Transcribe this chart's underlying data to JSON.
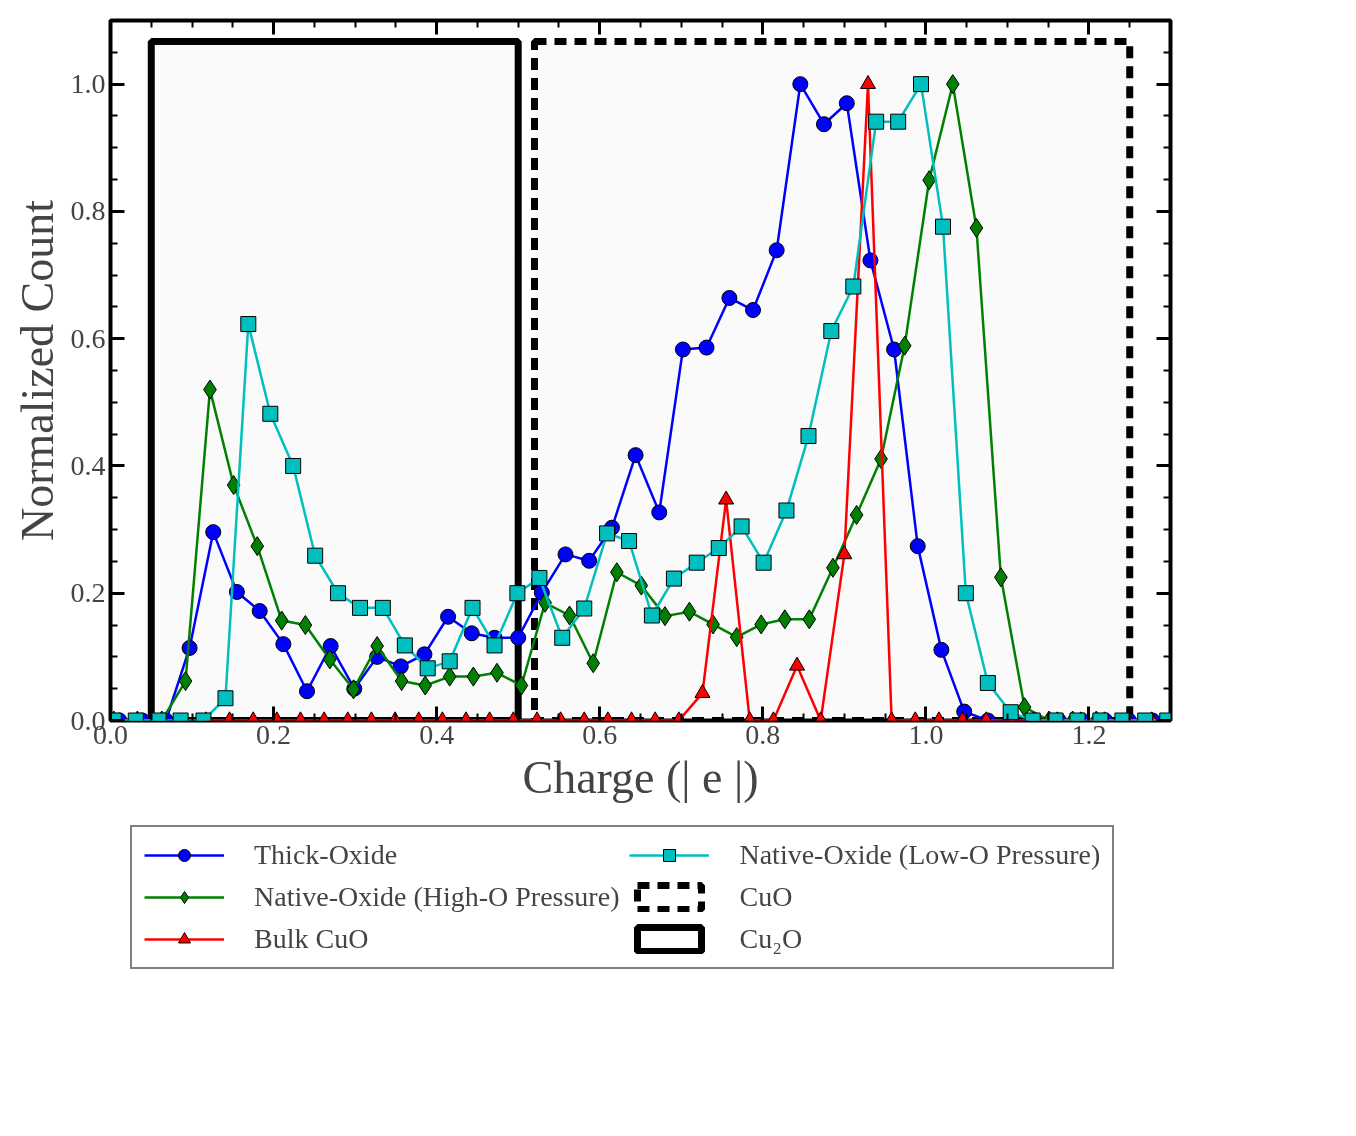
{
  "chart_data": {
    "type": "line",
    "xlabel": "Charge (| e |)",
    "ylabel": "Normalized Count",
    "xlim": [
      0,
      1.3
    ],
    "ylim": [
      0,
      1.1
    ],
    "xticks": [
      {
        "value": 0,
        "label": "0.0"
      },
      {
        "value": 0.05,
        "label": null
      },
      {
        "value": 0.1,
        "label": null
      },
      {
        "value": 0.15,
        "label": null
      },
      {
        "value": 0.2,
        "label": "0.2"
      },
      {
        "value": 0.25,
        "label": null
      },
      {
        "value": 0.3,
        "label": null
      },
      {
        "value": 0.35,
        "label": null
      },
      {
        "value": 0.4,
        "label": "0.4"
      },
      {
        "value": 0.45,
        "label": null
      },
      {
        "value": 0.5,
        "label": null
      },
      {
        "value": 0.55,
        "label": null
      },
      {
        "value": 0.6,
        "label": "0.6"
      },
      {
        "value": 0.65,
        "label": null
      },
      {
        "value": 0.7,
        "label": null
      },
      {
        "value": 0.75,
        "label": null
      },
      {
        "value": 0.8,
        "label": "0.8"
      },
      {
        "value": 0.85,
        "label": null
      },
      {
        "value": 0.9,
        "label": null
      },
      {
        "value": 0.95,
        "label": null
      },
      {
        "value": 1.0,
        "label": "1.0"
      },
      {
        "value": 1.05,
        "label": null
      },
      {
        "value": 1.1,
        "label": null
      },
      {
        "value": 1.15,
        "label": null
      },
      {
        "value": 1.2,
        "label": "1.2"
      },
      {
        "value": 1.25,
        "label": null
      }
    ],
    "yticks": [
      {
        "value": 0,
        "label": "0.0"
      },
      {
        "value": 0.05,
        "label": null
      },
      {
        "value": 0.1,
        "label": null
      },
      {
        "value": 0.15,
        "label": null
      },
      {
        "value": 0.2,
        "label": "0.2"
      },
      {
        "value": 0.25,
        "label": null
      },
      {
        "value": 0.3,
        "label": null
      },
      {
        "value": 0.35,
        "label": null
      },
      {
        "value": 0.4,
        "label": "0.4"
      },
      {
        "value": 0.45,
        "label": null
      },
      {
        "value": 0.5,
        "label": null
      },
      {
        "value": 0.55,
        "label": null
      },
      {
        "value": 0.6,
        "label": "0.6"
      },
      {
        "value": 0.65,
        "label": null
      },
      {
        "value": 0.7,
        "label": null
      },
      {
        "value": 0.75,
        "label": null
      },
      {
        "value": 0.8,
        "label": "0.8"
      },
      {
        "value": 0.85,
        "label": null
      },
      {
        "value": 0.9,
        "label": null
      },
      {
        "value": 0.95,
        "label": null
      },
      {
        "value": 1.0,
        "label": "1.0"
      },
      {
        "value": 1.05,
        "label": null
      }
    ],
    "grid": false,
    "legend": "bottom",
    "line_style": "solid",
    "series": [
      {
        "name": "Thick-Oxide",
        "color": "#0000ff",
        "marker": "circle",
        "x": [
          0.011,
          0.039,
          0.068,
          0.097,
          0.126,
          0.155,
          0.183,
          0.212,
          0.241,
          0.27,
          0.299,
          0.327,
          0.356,
          0.385,
          0.414,
          0.443,
          0.471,
          0.5,
          0.529,
          0.558,
          0.587,
          0.615,
          0.644,
          0.673,
          0.702,
          0.731,
          0.759,
          0.788,
          0.817,
          0.846,
          0.875,
          0.903,
          0.932,
          0.961,
          0.99,
          1.019,
          1.047,
          1.076,
          1.105,
          1.134,
          1.163,
          1.191,
          1.22,
          1.249,
          1.278
        ],
        "values": [
          0,
          0,
          0,
          0.114,
          0.296,
          0.202,
          0.172,
          0.12,
          0.046,
          0.117,
          0.05,
          0.1,
          0.085,
          0.104,
          0.163,
          0.137,
          0.13,
          0.13,
          0.201,
          0.261,
          0.251,
          0.303,
          0.417,
          0.327,
          0.583,
          0.586,
          0.664,
          0.645,
          0.739,
          1.0,
          0.937,
          0.97,
          0.723,
          0.583,
          0.274,
          0.111,
          0.014,
          0.0,
          0,
          0,
          0,
          0,
          0,
          0,
          0
        ]
      },
      {
        "name": "Native-Oxide (High-O Pressure)",
        "color": "#008000",
        "marker": "diamond",
        "x": [
          0.004,
          0.033,
          0.063,
          0.092,
          0.122,
          0.151,
          0.18,
          0.21,
          0.239,
          0.269,
          0.298,
          0.327,
          0.357,
          0.386,
          0.416,
          0.445,
          0.474,
          0.504,
          0.533,
          0.563,
          0.592,
          0.621,
          0.651,
          0.68,
          0.71,
          0.739,
          0.768,
          0.798,
          0.827,
          0.857,
          0.886,
          0.915,
          0.945,
          0.974,
          1.004,
          1.033,
          1.062,
          1.092,
          1.121,
          1.151,
          1.18,
          1.209
        ],
        "values": [
          0,
          0,
          0,
          0.062,
          0.52,
          0.37,
          0.274,
          0.157,
          0.15,
          0.096,
          0.049,
          0.117,
          0.062,
          0.055,
          0.069,
          0.069,
          0.075,
          0.055,
          0.185,
          0.165,
          0.09,
          0.233,
          0.212,
          0.164,
          0.171,
          0.151,
          0.131,
          0.151,
          0.159,
          0.159,
          0.24,
          0.323,
          0.411,
          0.589,
          0.849,
          1.0,
          0.774,
          0.225,
          0.021,
          0,
          0,
          0
        ]
      },
      {
        "name": "Bulk CuO",
        "color": "#ff0000",
        "marker": "triangle",
        "x": [
          0.117,
          0.146,
          0.175,
          0.204,
          0.233,
          0.262,
          0.291,
          0.32,
          0.349,
          0.378,
          0.407,
          0.436,
          0.465,
          0.494,
          0.523,
          0.552,
          0.581,
          0.61,
          0.639,
          0.668,
          0.697,
          0.726,
          0.755,
          0.784,
          0.813,
          0.842,
          0.871,
          0.9,
          0.929,
          0.958,
          0.987,
          1.016,
          1.045,
          1.074,
          1.103,
          1.132,
          1.161,
          1.19,
          1.219,
          1.248,
          1.277
        ],
        "values": [
          0,
          0,
          0,
          0,
          0,
          0,
          0,
          0,
          0,
          0,
          0,
          0,
          0,
          0,
          0,
          0,
          0,
          0,
          0,
          0,
          0,
          0.043,
          0.347,
          0,
          0,
          0.086,
          0,
          0.261,
          1.0,
          0,
          0,
          0,
          0,
          0,
          0,
          0,
          0,
          0,
          0,
          0,
          0
        ]
      },
      {
        "name": "Native-Oxide (Low-O Pressure)",
        "color": "#00bfbf",
        "marker": "square",
        "x": [
          0.004,
          0.031,
          0.059,
          0.086,
          0.114,
          0.141,
          0.169,
          0.196,
          0.224,
          0.251,
          0.279,
          0.306,
          0.334,
          0.361,
          0.389,
          0.416,
          0.444,
          0.471,
          0.499,
          0.526,
          0.554,
          0.581,
          0.609,
          0.636,
          0.664,
          0.691,
          0.719,
          0.746,
          0.774,
          0.801,
          0.829,
          0.856,
          0.884,
          0.911,
          0.939,
          0.966,
          0.994,
          1.021,
          1.049,
          1.076,
          1.104,
          1.131,
          1.159,
          1.186,
          1.214,
          1.241,
          1.269,
          1.296
        ],
        "values": [
          0,
          0,
          0,
          0,
          0,
          0.035,
          0.623,
          0.482,
          0.4,
          0.259,
          0.2,
          0.177,
          0.177,
          0.118,
          0.082,
          0.093,
          0.177,
          0.118,
          0.2,
          0.224,
          0.13,
          0.176,
          0.294,
          0.282,
          0.165,
          0.223,
          0.248,
          0.271,
          0.305,
          0.248,
          0.33,
          0.447,
          0.612,
          0.682,
          0.941,
          0.941,
          1.0,
          0.776,
          0.2,
          0.059,
          0.013,
          0,
          0,
          0,
          0,
          0,
          0,
          0
        ]
      }
    ],
    "bands": [
      {
        "axis": "x",
        "from": 0.52,
        "to": 1.25,
        "label": "CuO",
        "color": "#000000"
      },
      {
        "axis": "x",
        "from": 0.05,
        "to": 0.5,
        "label": "Cu₂O",
        "color": "#000000"
      }
    ]
  }
}
